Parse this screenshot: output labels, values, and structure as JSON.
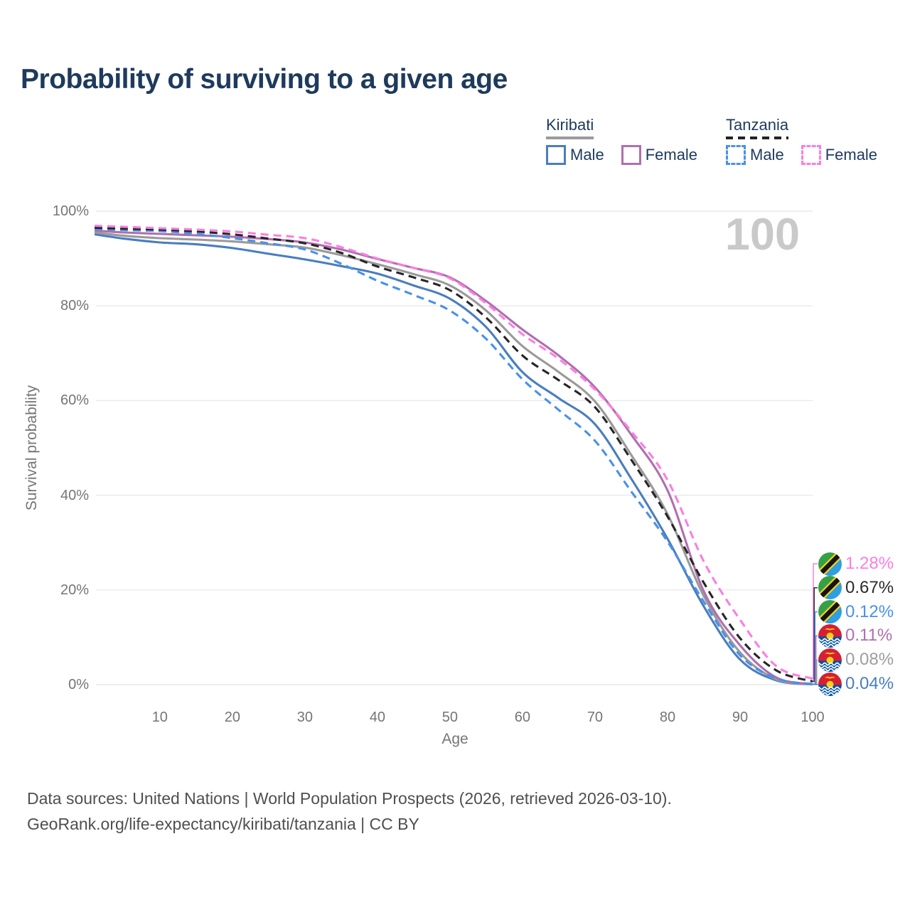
{
  "title": "Probability of surviving to a given age",
  "watermark_age": "100",
  "legend": {
    "groups": [
      {
        "country": "Kiribati",
        "line_style": "solid",
        "underline_color": "#9a9a9a",
        "items": [
          {
            "label": "Male",
            "color": "#4a7dbe"
          },
          {
            "label": "Female",
            "color": "#b06fae"
          }
        ]
      },
      {
        "country": "Tanzania",
        "line_style": "dashed",
        "underline_color": "#232323",
        "items": [
          {
            "label": "Male",
            "color": "#4a90e8"
          },
          {
            "label": "Female",
            "color": "#fb7ee0"
          }
        ]
      }
    ]
  },
  "chart_data": {
    "type": "line",
    "title": "Probability of surviving to a given age",
    "xlabel": "Age",
    "ylabel": "Survival probability",
    "xlim": [
      1,
      100
    ],
    "ylim": [
      0,
      100
    ],
    "grid": "horizontal",
    "legend_position": "top-right",
    "x": [
      1,
      5,
      10,
      15,
      20,
      25,
      30,
      35,
      40,
      45,
      50,
      55,
      60,
      65,
      70,
      75,
      80,
      85,
      90,
      95,
      100
    ],
    "x_ticks": [
      10,
      20,
      30,
      40,
      50,
      60,
      70,
      80,
      90,
      100
    ],
    "y_ticks": [
      {
        "value": 0,
        "label": "0%"
      },
      {
        "value": 20,
        "label": "20%"
      },
      {
        "value": 40,
        "label": "40%"
      },
      {
        "value": 60,
        "label": "60%"
      },
      {
        "value": 80,
        "label": "80%"
      },
      {
        "value": 100,
        "label": "100%"
      }
    ],
    "series": [
      {
        "id": "kiribati-male",
        "country": "Kiribati",
        "sex": "Male",
        "style": "solid",
        "color": "#4a7dbe",
        "values": [
          95.1,
          94.2,
          93.4,
          93.0,
          92.2,
          91.0,
          89.8,
          88.4,
          86.8,
          84.3,
          81.5,
          75.5,
          66.0,
          60.5,
          55.0,
          43.5,
          30.8,
          16.5,
          5.3,
          0.9,
          0.04
        ]
      },
      {
        "id": "kiribati-both",
        "country": "Kiribati",
        "sex": "Both",
        "style": "solid",
        "color": "#9a9a9a",
        "values": [
          95.5,
          94.8,
          94.3,
          94.0,
          93.6,
          93.0,
          92.3,
          90.7,
          88.8,
          86.7,
          84.3,
          79.0,
          71.5,
          66.0,
          59.8,
          48.5,
          36.0,
          18.7,
          6.8,
          1.1,
          0.08
        ]
      },
      {
        "id": "kiribati-female",
        "country": "Kiribati",
        "sex": "Female",
        "style": "solid",
        "color": "#b06fae",
        "values": [
          95.9,
          95.5,
          95.2,
          94.9,
          94.6,
          94.1,
          93.4,
          91.9,
          89.9,
          88.0,
          86.0,
          81.0,
          75.0,
          69.5,
          62.8,
          52.8,
          41.0,
          19.7,
          8.3,
          1.5,
          0.11
        ]
      },
      {
        "id": "tanzania-male",
        "country": "Tanzania",
        "sex": "Male",
        "style": "dashed",
        "color": "#4a90e8",
        "values": [
          96.2,
          96.0,
          95.8,
          95.2,
          94.3,
          93.2,
          91.9,
          88.9,
          85.3,
          82.3,
          79.0,
          73.0,
          64.5,
          58.0,
          51.5,
          40.8,
          30.2,
          17.5,
          6.2,
          1.3,
          0.12
        ]
      },
      {
        "id": "tanzania-both",
        "country": "Tanzania",
        "sex": "Both",
        "style": "dashed",
        "color": "#262626",
        "values": [
          96.5,
          96.3,
          96.1,
          95.7,
          95.1,
          94.2,
          93.2,
          91.2,
          88.3,
          86.0,
          83.3,
          77.5,
          69.5,
          64.3,
          58.6,
          47.5,
          35.5,
          21.5,
          9.8,
          3.0,
          0.67
        ]
      },
      {
        "id": "tanzania-female",
        "country": "Tanzania",
        "sex": "Female",
        "style": "dashed",
        "color": "#fb7ee0",
        "values": [
          96.9,
          96.7,
          96.4,
          96.1,
          95.7,
          95.0,
          94.3,
          92.4,
          90.0,
          88.0,
          85.8,
          80.5,
          74.0,
          68.8,
          62.3,
          53.5,
          43.2,
          26.0,
          13.7,
          3.9,
          1.28
        ]
      }
    ],
    "end_labels": [
      {
        "series": "tanzania-female",
        "flag": "tanzania",
        "value": "1.28%",
        "color": "#fb7ee0"
      },
      {
        "series": "tanzania-both",
        "flag": "tanzania",
        "value": "0.67%",
        "color": "#2b2b2b"
      },
      {
        "series": "tanzania-male",
        "flag": "tanzania",
        "value": "0.12%",
        "color": "#4a90e8"
      },
      {
        "series": "kiribati-female",
        "flag": "kiribati",
        "value": "0.11%",
        "color": "#b06fae"
      },
      {
        "series": "kiribati-both",
        "flag": "kiribati",
        "value": "0.08%",
        "color": "#9e9e9e"
      },
      {
        "series": "kiribati-male",
        "flag": "kiribati",
        "value": "0.04%",
        "color": "#4a7dbe"
      }
    ]
  },
  "footer": {
    "line1": "Data sources: United Nations | World Population Prospects (2026, retrieved 2026-03-10).",
    "line2": "GeoRank.org/life-expectancy/kiribati/tanzania | CC BY"
  }
}
